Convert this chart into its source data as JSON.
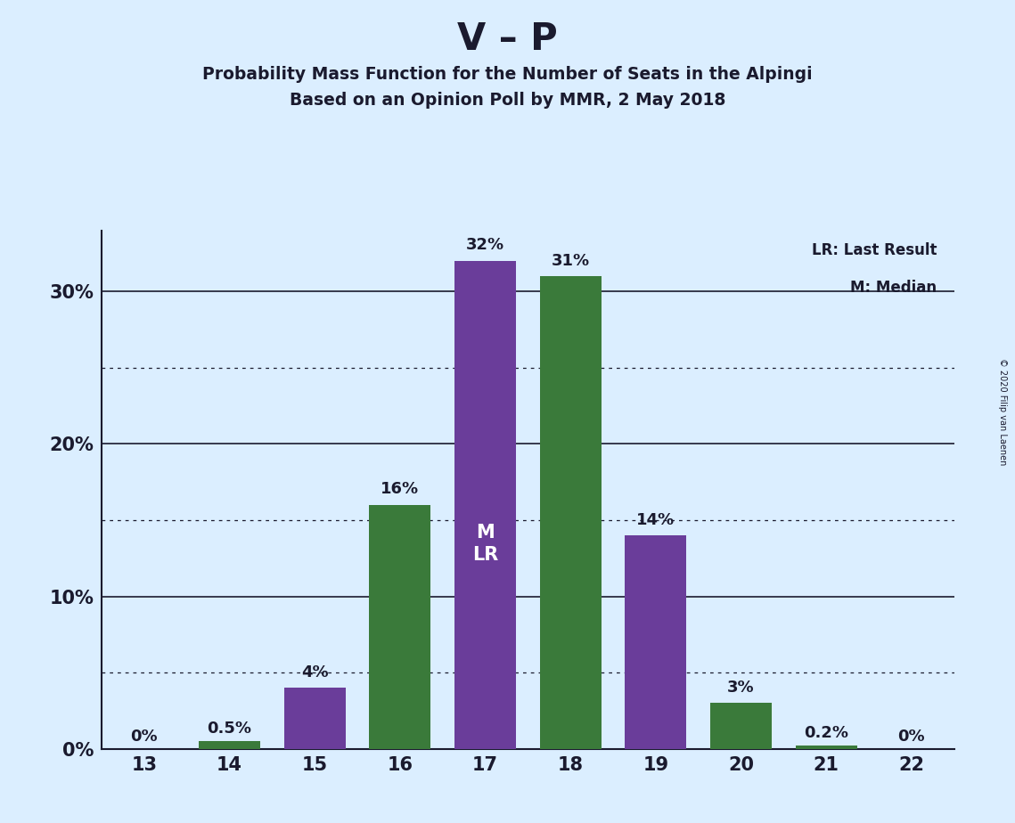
{
  "title": "V – P",
  "subtitle1": "Probability Mass Function for the Number of Seats in the Alpingi",
  "subtitle2": "Based on an Opinion Poll by MMR, 2 May 2018",
  "copyright": "© 2020 Filip van Laenen",
  "seats": [
    13,
    14,
    15,
    16,
    17,
    18,
    19,
    20,
    21,
    22
  ],
  "pmf_values": [
    0.0,
    0.5,
    4.0,
    16.0,
    32.0,
    31.0,
    14.0,
    3.0,
    0.2,
    0.0
  ],
  "bar_colors": [
    "#3a7a3a",
    "#3a7a3a",
    "#6a3d9a",
    "#3a7a3a",
    "#6a3d9a",
    "#3a7a3a",
    "#6a3d9a",
    "#3a7a3a",
    "#3a7a3a",
    "#6a3d9a"
  ],
  "median_seat": 17,
  "last_result_seat": 17,
  "bar_labels": [
    "0%",
    "0.5%",
    "4%",
    "16%",
    "32%",
    "31%",
    "14%",
    "3%",
    "0.2%",
    "0%"
  ],
  "solid_gridlines": [
    10,
    20,
    30
  ],
  "dotted_gridlines": [
    5,
    15,
    25
  ],
  "background_color": "#dbeeff",
  "text_color": "#1a1a2e",
  "legend_text1": "LR: Last Result",
  "legend_text2": "M: Median",
  "green_color": "#3a7a3a",
  "purple_color": "#6a3d9a",
  "ylim": [
    0,
    34
  ]
}
